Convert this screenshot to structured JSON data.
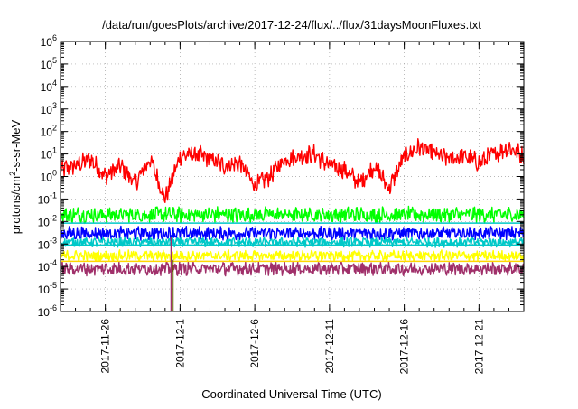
{
  "chart_data": {
    "type": "line",
    "title": "/data/run/goesPlots/archive/2017-12-24/flux/../flux/31daysMoonFluxes.txt",
    "xlabel": "Coordinated Universal Time (UTC)",
    "ylabel": {
      "base": "protons/cm",
      "sup": "2",
      "rest": "-s-sr-MeV"
    },
    "yscale": "log",
    "ylim": [
      1e-06,
      1000000.0
    ],
    "y_ticks": [
      {
        "value": 1e-06,
        "base": "10",
        "exp": "-6"
      },
      {
        "value": 1e-05,
        "base": "10",
        "exp": "-5"
      },
      {
        "value": 0.0001,
        "base": "10",
        "exp": "-4"
      },
      {
        "value": 0.001,
        "base": "10",
        "exp": "-3"
      },
      {
        "value": 0.01,
        "base": "10",
        "exp": "-2"
      },
      {
        "value": 0.1,
        "base": "10",
        "exp": "-1"
      },
      {
        "value": 1,
        "base": "10",
        "exp": "0"
      },
      {
        "value": 10,
        "base": "10",
        "exp": "1"
      },
      {
        "value": 100,
        "base": "10",
        "exp": "2"
      },
      {
        "value": 1000,
        "base": "10",
        "exp": "3"
      },
      {
        "value": 10000,
        "base": "10",
        "exp": "4"
      },
      {
        "value": 100000,
        "base": "10",
        "exp": "5"
      },
      {
        "value": 1000000,
        "base": "10",
        "exp": "6"
      }
    ],
    "xlim": [
      "2017-11-23",
      "2017-12-24"
    ],
    "x_ticks": [
      "2017-11-26",
      "2017-12-1",
      "2017-12-6",
      "2017-12-11",
      "2017-12-16",
      "2017-12-21"
    ],
    "x_tick_dates": [
      "2017-11-26",
      "2017-12-01",
      "2017-12-06",
      "2017-12-11",
      "2017-12-16",
      "2017-12-21"
    ],
    "grid": true,
    "dropout_date": "2017-11-30",
    "series": [
      {
        "color": "#ff0000",
        "x": [
          "2017-11-23",
          "2017-11-24",
          "2017-11-25",
          "2017-11-26",
          "2017-11-27",
          "2017-11-28",
          "2017-11-29",
          "2017-11-30",
          "2017-12-01",
          "2017-12-02",
          "2017-12-03",
          "2017-12-04",
          "2017-12-05",
          "2017-12-06",
          "2017-12-07",
          "2017-12-08",
          "2017-12-09",
          "2017-12-10",
          "2017-12-11",
          "2017-12-12",
          "2017-12-13",
          "2017-12-14",
          "2017-12-15",
          "2017-12-16",
          "2017-12-17",
          "2017-12-18",
          "2017-12-19",
          "2017-12-20",
          "2017-12-21",
          "2017-12-22",
          "2017-12-23",
          "2017-12-24"
        ],
        "y": [
          2,
          3,
          6,
          1,
          3,
          0.5,
          6,
          0.1,
          8,
          10,
          6,
          3,
          4,
          0.4,
          1,
          6,
          8,
          10,
          3,
          2,
          0.5,
          3,
          0.3,
          8,
          20,
          10,
          6,
          8,
          4,
          10,
          20,
          8
        ],
        "wiggle": 0.35
      },
      {
        "color": "#00ff00",
        "center": 0.02,
        "wiggle": 0.3
      },
      {
        "color": "#0000ff",
        "center": 0.003,
        "wiggle": 0.25
      },
      {
        "color": "#00c8c8",
        "center": 0.0012,
        "wiggle": 0.18
      },
      {
        "color": "#ffff00",
        "center": 0.0003,
        "wiggle": 0.2
      },
      {
        "color": "#a0306a",
        "center": 8e-05,
        "wiggle": 0.25
      }
    ],
    "reference_lines": [
      {
        "color": "#00c8c8",
        "value": 0.0085
      },
      {
        "color": "#00c8c8",
        "value": 0.0009
      },
      {
        "color": "#ffd700",
        "value": 0.00017
      }
    ]
  }
}
